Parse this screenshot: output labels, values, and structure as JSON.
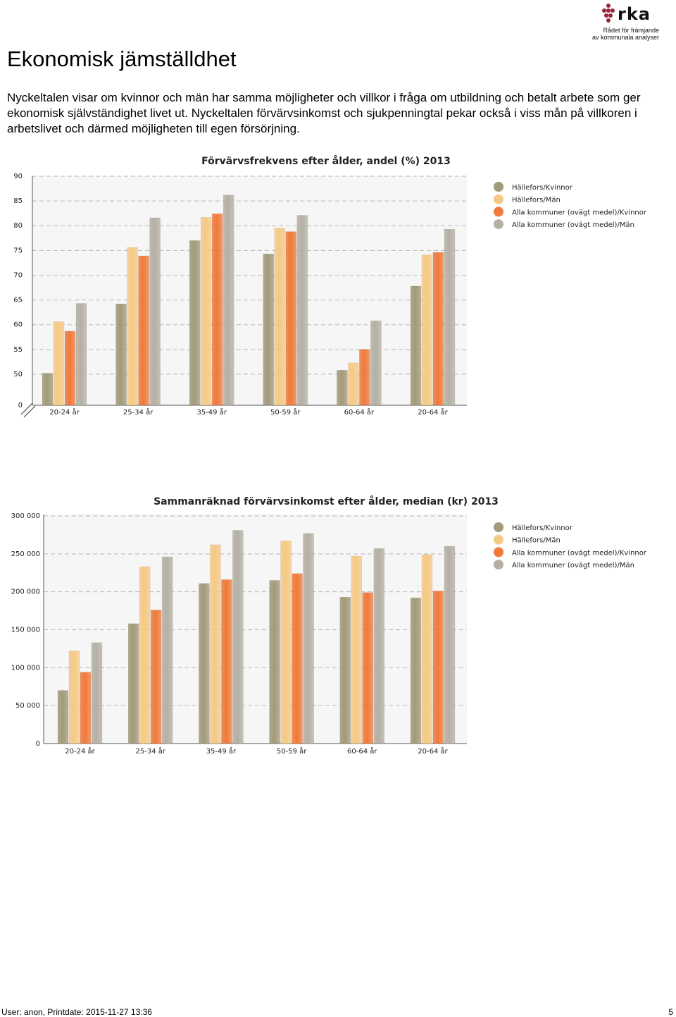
{
  "logo": {
    "name": "rka",
    "subtitle_line1": "Rådet för främjande",
    "subtitle_line2": "av kommunala analyser"
  },
  "page_title": "Ekonomisk jämställdhet",
  "intro_text": "Nyckeltalen visar om kvinnor och män har samma möjligheter och villkor i fråga om utbildning och betalt arbete som ger ekonomisk självständighet livet ut. Nyckeltalen förvärvsinkomst och sjukpenningtal pekar också i viss mån på villkoren i arbetslivet och därmed möjligheten till egen försörjning.",
  "colors": {
    "hallefors_kvinnor": "#a39a7a",
    "hallefors_man": "#f5c985",
    "alla_kvinnor": "#f07a3a",
    "alla_man": "#b5b0a4"
  },
  "chart_data": [
    {
      "type": "bar",
      "title": "Förvärvsfrekvens efter ålder, andel (%) 2013",
      "categories": [
        "20-24 år",
        "25-34 år",
        "35-49 år",
        "50-59 år",
        "60-64 år",
        "20-64 år"
      ],
      "y_ticks": [
        "90",
        "85",
        "80",
        "75",
        "70",
        "65",
        "60",
        "55",
        "50",
        "0"
      ],
      "y_tick_values": [
        90,
        85,
        80,
        75,
        70,
        65,
        60,
        55,
        50
      ],
      "ylim": [
        47,
        90
      ],
      "axis_break": true,
      "series": [
        {
          "name": "Hällefors/Kvinnor",
          "values": [
            50.2,
            64.2,
            77.0,
            74.3,
            50.8,
            67.8
          ]
        },
        {
          "name": "Hällefors/Män",
          "values": [
            60.6,
            75.6,
            81.7,
            79.5,
            52.3,
            74.1
          ]
        },
        {
          "name": "Alla kommuner (ovägt medel)/Kvinnor",
          "values": [
            58.7,
            73.9,
            82.4,
            78.8,
            55.0,
            74.6
          ]
        },
        {
          "name": "Alla kommuner (ovägt medel)/Män",
          "values": [
            64.3,
            81.6,
            86.2,
            82.1,
            60.8,
            79.3
          ]
        }
      ],
      "legend_position": "right",
      "grid": true
    },
    {
      "type": "bar",
      "title": "Sammanräknad förvärvsinkomst efter ålder, median (kr) 2013",
      "categories": [
        "20-24 år",
        "25-34 år",
        "35-49 år",
        "50-59 år",
        "60-64 år",
        "20-64 år"
      ],
      "y_ticks": [
        "300 000",
        "250 000",
        "200 000",
        "150 000",
        "100 000",
        "50 000",
        "0"
      ],
      "y_tick_values": [
        300000,
        250000,
        200000,
        150000,
        100000,
        50000,
        0
      ],
      "ylim": [
        0,
        300000
      ],
      "axis_break": false,
      "series": [
        {
          "name": "Hällefors/Kvinnor",
          "values": [
            70000,
            158000,
            211000,
            215000,
            193000,
            192000
          ]
        },
        {
          "name": "Hällefors/Män",
          "values": [
            122000,
            233000,
            262000,
            267000,
            247000,
            249000
          ]
        },
        {
          "name": "Alla kommuner (ovägt medel)/Kvinnor",
          "values": [
            94000,
            176000,
            216000,
            224000,
            199000,
            201000
          ]
        },
        {
          "name": "Alla kommuner (ovägt medel)/Män",
          "values": [
            133000,
            246000,
            281000,
            277000,
            257000,
            260000
          ]
        }
      ],
      "legend_position": "right",
      "grid": true
    }
  ],
  "footer": {
    "user_print": "User: anon, Printdate: 2015-11-27 13:36",
    "page_number": "5"
  }
}
